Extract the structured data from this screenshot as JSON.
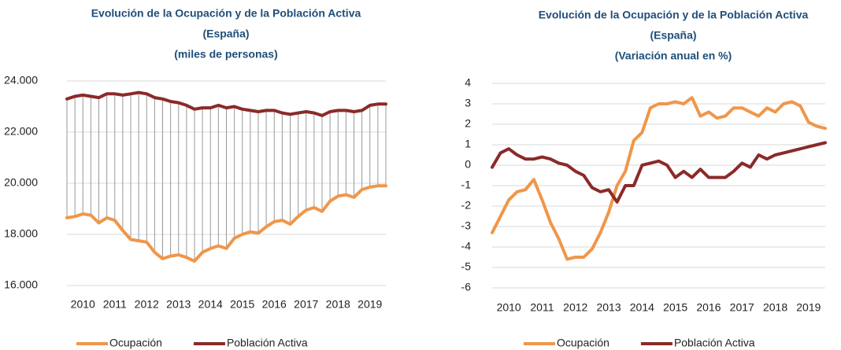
{
  "chart_data": [
    {
      "type": "line",
      "title": [
        "Evolución de la Ocupación y de la Población Activa",
        "(España)",
        "(miles de personas)"
      ],
      "categories": [
        null,
        null,
        "2010",
        null,
        null,
        null,
        "2011",
        null,
        null,
        null,
        "2012",
        null,
        null,
        null,
        "2013",
        null,
        null,
        null,
        "2014",
        null,
        null,
        null,
        "2015",
        null,
        null,
        null,
        "2016",
        null,
        null,
        null,
        "2017",
        null,
        null,
        null,
        "2018",
        null,
        null,
        null,
        "2019",
        null,
        null
      ],
      "series": [
        {
          "name": "Ocupación",
          "color": "#f0964a",
          "values": [
            18650,
            18700,
            18800,
            18750,
            18450,
            18650,
            18550,
            18150,
            17800,
            17750,
            17700,
            17300,
            17050,
            17150,
            17200,
            17100,
            16950,
            17300,
            17450,
            17550,
            17450,
            17850,
            18000,
            18100,
            18050,
            18300,
            18500,
            18550,
            18400,
            18700,
            18950,
            19050,
            18900,
            19300,
            19500,
            19550,
            19450,
            19750,
            19850,
            19900,
            19900
          ]
        },
        {
          "name": "Población Activa",
          "color": "#8b2a2a",
          "values": [
            23300,
            23400,
            23450,
            23400,
            23350,
            23500,
            23500,
            23450,
            23500,
            23550,
            23500,
            23350,
            23300,
            23200,
            23150,
            23050,
            22900,
            22950,
            22950,
            23050,
            22950,
            23000,
            22900,
            22850,
            22800,
            22850,
            22850,
            22750,
            22700,
            22750,
            22800,
            22750,
            22650,
            22800,
            22850,
            22850,
            22800,
            22850,
            23050,
            23100,
            23100
          ]
        }
      ],
      "ylim": [
        16000,
        24000
      ],
      "yticks": [
        {
          "value": 16000,
          "label": "16.000"
        },
        {
          "value": 18000,
          "label": "18.000"
        },
        {
          "value": 20000,
          "label": "20.000"
        },
        {
          "value": 22000,
          "label": "22.000"
        },
        {
          "value": 24000,
          "label": "24.000"
        }
      ],
      "grid": true,
      "drop_lines": true,
      "legend": "bottom"
    },
    {
      "type": "line",
      "title": [
        "Evolución de la Ocupación y de la Población Activa",
        "(España)",
        "(Variación anual en %)"
      ],
      "categories": [
        null,
        null,
        "2010",
        null,
        null,
        null,
        "2011",
        null,
        null,
        null,
        "2012",
        null,
        null,
        null,
        "2013",
        null,
        null,
        null,
        "2014",
        null,
        null,
        null,
        "2015",
        null,
        null,
        null,
        "2016",
        null,
        null,
        null,
        "2017",
        null,
        null,
        null,
        "2018",
        null,
        null,
        null,
        "2019",
        null,
        null
      ],
      "series": [
        {
          "name": "Ocupación",
          "color": "#f0964a",
          "values": [
            -3.3,
            -2.5,
            -1.7,
            -1.3,
            -1.2,
            -0.7,
            -1.7,
            -2.8,
            -3.6,
            -4.6,
            -4.5,
            -4.5,
            -4.1,
            -3.3,
            -2.3,
            -1.0,
            -0.3,
            1.2,
            1.6,
            2.8,
            3.0,
            3.0,
            3.1,
            3.0,
            3.3,
            2.4,
            2.6,
            2.3,
            2.4,
            2.8,
            2.8,
            2.6,
            2.4,
            2.8,
            2.6,
            3.0,
            3.1,
            2.9,
            2.1,
            1.9,
            1.8
          ]
        },
        {
          "name": "Población Activa",
          "color": "#8b2a2a",
          "values": [
            -0.1,
            0.6,
            0.8,
            0.5,
            0.3,
            0.3,
            0.4,
            0.3,
            0.1,
            0.0,
            -0.3,
            -0.5,
            -1.1,
            -1.3,
            -1.2,
            -1.8,
            -1.0,
            -1.0,
            0.0,
            0.1,
            0.2,
            0.0,
            -0.6,
            -0.3,
            -0.6,
            -0.2,
            -0.6,
            -0.6,
            -0.6,
            -0.3,
            0.1,
            -0.1,
            0.5,
            0.3,
            0.5,
            0.6,
            0.7,
            0.8,
            0.9,
            1.0,
            1.1
          ]
        }
      ],
      "ylim": [
        -6,
        4
      ],
      "yticks": [
        -6,
        -5,
        -4,
        -3,
        -2,
        -1,
        0,
        1,
        2,
        3,
        4
      ],
      "grid": true,
      "drop_lines": false,
      "legend": "bottom"
    }
  ]
}
